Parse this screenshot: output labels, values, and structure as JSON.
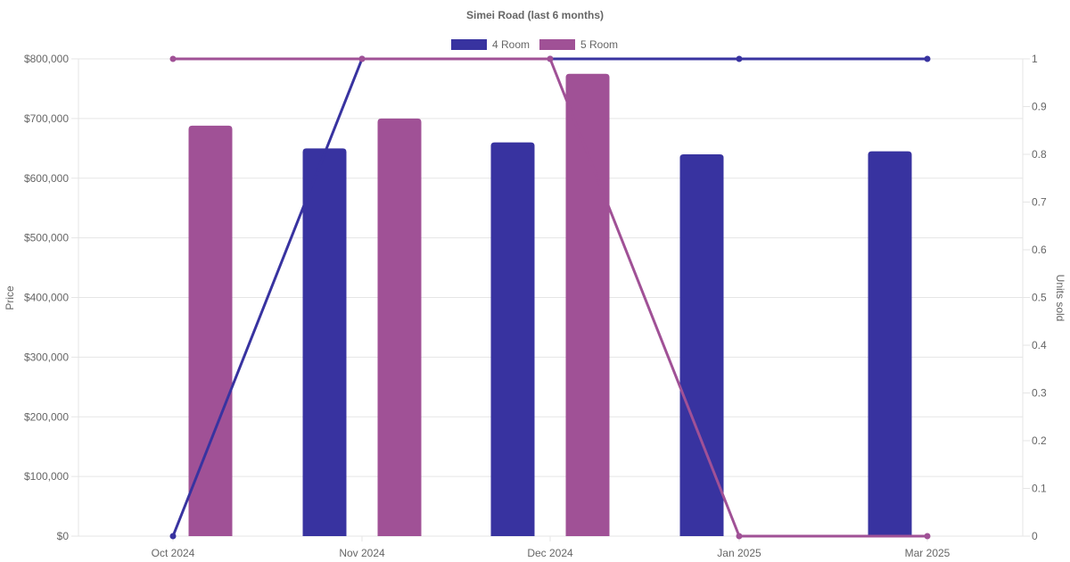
{
  "chart_data": {
    "type": "bar",
    "title": "Simei Road (last 6 months)",
    "categories": [
      "Oct 2024",
      "Nov 2024",
      "Dec 2024",
      "Jan 2025",
      "Mar 2025"
    ],
    "y_left": {
      "label": "Price",
      "range": [
        0,
        800000
      ],
      "ticks": [
        "$0",
        "$100,000",
        "$200,000",
        "$300,000",
        "$400,000",
        "$500,000",
        "$600,000",
        "$700,000",
        "$800,000"
      ]
    },
    "y_right": {
      "label": "Units sold",
      "range": [
        0,
        1
      ],
      "ticks": [
        "0",
        "0.1",
        "0.2",
        "0.3",
        "0.4",
        "0.5",
        "0.6",
        "0.7",
        "0.8",
        "0.9",
        "1"
      ]
    },
    "grid": true,
    "legend": "top-center",
    "series": [
      {
        "name": "4 Room",
        "color": "#3833a0",
        "price": [
          null,
          650000,
          660000,
          640000,
          645000
        ],
        "units_sold": [
          0,
          1,
          1,
          1,
          1
        ]
      },
      {
        "name": "5 Room",
        "color": "#a05196",
        "price": [
          688000,
          700000,
          775000,
          null,
          null
        ],
        "units_sold": [
          1,
          1,
          1,
          0,
          0
        ]
      }
    ]
  }
}
